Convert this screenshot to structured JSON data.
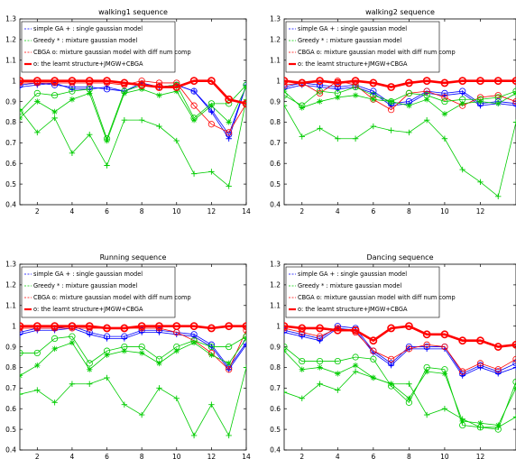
{
  "chart_data": [
    {
      "type": "line",
      "title": "walking1 sequence",
      "x": [
        1,
        2,
        3,
        4,
        5,
        6,
        7,
        8,
        9,
        10,
        11,
        12,
        13,
        14
      ],
      "xticks": [
        2,
        4,
        6,
        8,
        10,
        12,
        14
      ],
      "yticks": [
        0.4,
        0.5,
        0.6,
        0.7,
        0.8,
        0.9,
        1,
        1.1,
        1.2,
        1.3
      ],
      "xlim": [
        1,
        14
      ],
      "ylim": [
        0.4,
        1.3
      ],
      "legend": [
        "simple GA  + : single gaussian model",
        "Greedy     * : mixture gaussian model",
        "CBGA       o: mixture gaussian model with diff num comp",
        "o: the learnt structure+JMGW+CBGA"
      ],
      "series": [
        {
          "color": "#0000ff",
          "marker": "plus",
          "values": [
            0.97,
            0.98,
            0.99,
            0.96,
            0.96,
            0.97,
            0.95,
            0.99,
            0.97,
            0.98,
            0.95,
            0.85,
            0.72,
            0.98
          ]
        },
        {
          "color": "#0000ff",
          "marker": "circle",
          "values": [
            0.98,
            0.99,
            0.98,
            0.97,
            0.97,
            0.96,
            0.95,
            0.98,
            0.97,
            0.98,
            0.95,
            0.86,
            0.74,
            0.98
          ]
        },
        {
          "color": "#ff0000",
          "marker": "circle",
          "thin": true,
          "values": [
            0.99,
            0.99,
            0.99,
            0.99,
            0.99,
            0.99,
            0.98,
            1.0,
            0.99,
            0.99,
            0.88,
            0.79,
            0.75,
            0.89
          ]
        },
        {
          "color": "#00cc00",
          "marker": "circle",
          "values": [
            0.85,
            0.94,
            0.93,
            0.95,
            0.96,
            0.72,
            0.95,
            0.98,
            0.97,
            0.98,
            0.82,
            0.89,
            0.89,
            0.98
          ]
        },
        {
          "color": "#00cc00",
          "marker": "star",
          "values": [
            0.82,
            0.9,
            0.85,
            0.91,
            0.94,
            0.71,
            0.94,
            0.96,
            0.93,
            0.95,
            0.81,
            0.88,
            0.8,
            0.97
          ]
        },
        {
          "color": "#00cc00",
          "marker": "plus",
          "values": [
            0.86,
            0.75,
            0.82,
            0.65,
            0.74,
            0.59,
            0.81,
            0.81,
            0.78,
            0.71,
            0.55,
            0.56,
            0.49,
            0.91
          ]
        },
        {
          "color": "#ff0000",
          "marker": "circle",
          "thick": true,
          "values": [
            1.0,
            1.0,
            1.0,
            1.0,
            1.0,
            1.0,
            0.99,
            0.98,
            0.97,
            0.97,
            1.0,
            1.0,
            0.91,
            0.89
          ]
        }
      ]
    },
    {
      "type": "line",
      "title": "walking2 sequence",
      "x": [
        1,
        2,
        3,
        4,
        5,
        6,
        7,
        8,
        9,
        10,
        11,
        12,
        13,
        14
      ],
      "xticks": [
        2,
        4,
        6,
        8,
        10,
        12
      ],
      "yticks": [
        0.4,
        0.5,
        0.6,
        0.7,
        0.8,
        0.9,
        1,
        1.1,
        1.2,
        1.3
      ],
      "xlim": [
        1,
        14
      ],
      "ylim": [
        0.4,
        1.3
      ],
      "legend": [
        "simple GA  + : single gaussian model",
        "Greedy     * : mixture gaussian model",
        "CBGA       o: mixture gaussian model with diff num comp",
        "o: the learnt structure+JMGW+CBGA"
      ],
      "series": [
        {
          "color": "#0000ff",
          "marker": "plus",
          "values": [
            0.96,
            0.98,
            0.97,
            0.96,
            0.97,
            0.94,
            0.88,
            0.89,
            0.94,
            0.93,
            0.94,
            0.88,
            0.89,
            0.88
          ]
        },
        {
          "color": "#0000ff",
          "marker": "circle",
          "values": [
            0.97,
            0.99,
            0.98,
            0.97,
            0.98,
            0.95,
            0.89,
            0.9,
            0.95,
            0.94,
            0.95,
            0.89,
            0.9,
            0.89
          ]
        },
        {
          "color": "#ff0000",
          "marker": "circle",
          "thin": true,
          "values": [
            0.98,
            0.99,
            0.94,
            1.0,
            0.98,
            0.91,
            0.86,
            0.94,
            0.95,
            0.92,
            0.88,
            0.92,
            0.93,
            0.9
          ]
        },
        {
          "color": "#00cc00",
          "marker": "circle",
          "values": [
            0.93,
            0.88,
            0.95,
            0.94,
            0.97,
            0.93,
            0.9,
            0.94,
            0.93,
            0.9,
            0.91,
            0.91,
            0.92,
            0.95
          ]
        },
        {
          "color": "#00cc00",
          "marker": "star",
          "values": [
            0.95,
            0.87,
            0.9,
            0.92,
            0.93,
            0.91,
            0.9,
            0.88,
            0.91,
            0.84,
            0.89,
            0.9,
            0.89,
            0.94
          ]
        },
        {
          "color": "#00cc00",
          "marker": "plus",
          "values": [
            0.88,
            0.73,
            0.77,
            0.72,
            0.72,
            0.78,
            0.76,
            0.75,
            0.81,
            0.72,
            0.57,
            0.51,
            0.44,
            0.8
          ]
        },
        {
          "color": "#ff0000",
          "marker": "circle",
          "thick": true,
          "values": [
            1.0,
            0.99,
            1.0,
            0.99,
            1.0,
            0.99,
            0.97,
            0.99,
            1.0,
            0.99,
            1.0,
            1.0,
            1.0,
            1.0
          ]
        }
      ]
    },
    {
      "type": "line",
      "title": "Running sequence",
      "x": [
        1,
        2,
        3,
        4,
        5,
        6,
        7,
        8,
        9,
        10,
        11,
        12,
        13,
        14
      ],
      "xticks": [
        2,
        4,
        6,
        8,
        10,
        12,
        14
      ],
      "yticks": [
        0.4,
        0.5,
        0.6,
        0.7,
        0.8,
        0.9,
        1,
        1.1,
        1.2,
        1.3
      ],
      "xlim": [
        1,
        14
      ],
      "ylim": [
        0.4,
        1.3
      ],
      "legend": [
        "simple GA  + : single gaussian model",
        "Greedy     * : mixture gaussian model",
        "CBGA       o: mixture gaussian model with diff num comp",
        "o: the learnt structure+JMGW+CBGA"
      ],
      "series": [
        {
          "color": "#0000ff",
          "marker": "plus",
          "values": [
            0.96,
            0.98,
            0.98,
            0.99,
            0.96,
            0.94,
            0.94,
            0.97,
            0.97,
            0.96,
            0.95,
            0.9,
            0.79,
            0.91
          ]
        },
        {
          "color": "#0000ff",
          "marker": "circle",
          "values": [
            0.97,
            0.99,
            0.99,
            1.0,
            0.97,
            0.95,
            0.95,
            0.98,
            0.98,
            0.97,
            0.96,
            0.91,
            0.8,
            0.92
          ]
        },
        {
          "color": "#ff0000",
          "marker": "circle",
          "thin": true,
          "values": [
            0.99,
            0.99,
            0.99,
            0.99,
            0.99,
            0.99,
            0.99,
            0.99,
            0.99,
            0.97,
            0.93,
            0.87,
            0.79,
            0.98
          ]
        },
        {
          "color": "#00cc00",
          "marker": "circle",
          "values": [
            0.87,
            0.87,
            0.94,
            0.95,
            0.82,
            0.88,
            0.9,
            0.9,
            0.84,
            0.9,
            0.93,
            0.9,
            0.9,
            0.95
          ]
        },
        {
          "color": "#00cc00",
          "marker": "star",
          "values": [
            0.76,
            0.81,
            0.89,
            0.92,
            0.79,
            0.86,
            0.88,
            0.87,
            0.82,
            0.88,
            0.92,
            0.86,
            0.82,
            0.94
          ]
        },
        {
          "color": "#00cc00",
          "marker": "plus",
          "values": [
            0.67,
            0.69,
            0.63,
            0.72,
            0.72,
            0.75,
            0.62,
            0.57,
            0.7,
            0.65,
            0.47,
            0.62,
            0.47,
            0.8
          ]
        },
        {
          "color": "#ff0000",
          "marker": "circle",
          "thick": true,
          "values": [
            1.0,
            1.0,
            1.0,
            1.0,
            1.0,
            0.99,
            0.99,
            1.0,
            1.0,
            1.0,
            1.0,
            0.99,
            1.0,
            1.0
          ]
        }
      ]
    },
    {
      "type": "line",
      "title": "Dancing sequence",
      "x": [
        1,
        2,
        3,
        4,
        5,
        6,
        7,
        8,
        9,
        10,
        11,
        12,
        13,
        14
      ],
      "xticks": [
        2,
        4,
        6,
        8,
        10,
        12
      ],
      "yticks": [
        0.4,
        0.5,
        0.6,
        0.7,
        0.8,
        0.9,
        1,
        1.1,
        1.2,
        1.3
      ],
      "xlim": [
        1,
        14
      ],
      "ylim": [
        0.4,
        1.3
      ],
      "legend": [
        "simple GA  + : single gaussian model",
        "Greedy     * : mixture gaussian model",
        "CBGA       o: mixture gaussian model with diff num comp",
        "o: the learnt structure+JMGW+CBGA"
      ],
      "series": [
        {
          "color": "#0000ff",
          "marker": "plus",
          "values": [
            0.97,
            0.95,
            0.93,
            0.99,
            0.98,
            0.87,
            0.81,
            0.89,
            0.89,
            0.89,
            0.76,
            0.8,
            0.77,
            0.8
          ]
        },
        {
          "color": "#0000ff",
          "marker": "circle",
          "values": [
            0.98,
            0.96,
            0.94,
            1.0,
            0.99,
            0.88,
            0.82,
            0.9,
            0.9,
            0.9,
            0.77,
            0.81,
            0.78,
            0.82
          ]
        },
        {
          "color": "#ff0000",
          "marker": "circle",
          "thin": true,
          "values": [
            0.99,
            0.97,
            0.95,
            0.99,
            0.97,
            0.88,
            0.84,
            0.89,
            0.91,
            0.9,
            0.78,
            0.82,
            0.79,
            0.84
          ]
        },
        {
          "color": "#00cc00",
          "marker": "circle",
          "values": [
            0.9,
            0.83,
            0.83,
            0.83,
            0.85,
            0.84,
            0.71,
            0.63,
            0.8,
            0.79,
            0.52,
            0.51,
            0.5,
            0.73
          ]
        },
        {
          "color": "#00cc00",
          "marker": "star",
          "values": [
            0.88,
            0.79,
            0.8,
            0.77,
            0.81,
            0.75,
            0.72,
            0.65,
            0.78,
            0.77,
            0.54,
            0.53,
            0.52,
            0.7
          ]
        },
        {
          "color": "#00cc00",
          "marker": "plus",
          "values": [
            0.68,
            0.65,
            0.72,
            0.69,
            0.78,
            0.75,
            0.72,
            0.72,
            0.57,
            0.6,
            0.55,
            0.51,
            0.51,
            0.56
          ]
        },
        {
          "color": "#ff0000",
          "marker": "circle",
          "thick": true,
          "values": [
            1.0,
            0.99,
            0.99,
            0.98,
            0.98,
            0.93,
            0.99,
            1.0,
            0.96,
            0.96,
            0.93,
            0.93,
            0.9,
            0.91
          ]
        }
      ]
    }
  ]
}
